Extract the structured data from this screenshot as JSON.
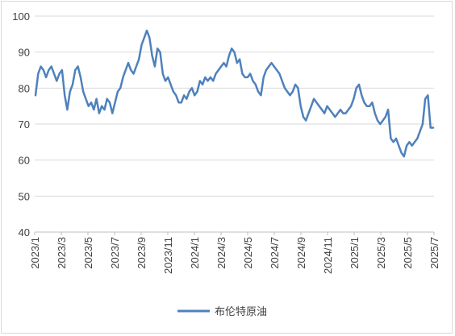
{
  "chart_data": {
    "type": "line",
    "title": "",
    "xlabel": "",
    "ylabel": "",
    "ylim": [
      40,
      100
    ],
    "yticks": [
      40,
      50,
      60,
      70,
      80,
      90,
      100
    ],
    "xticks": [
      "2023/1",
      "2023/3",
      "2023/5",
      "2023/7",
      "2023/9",
      "2023/11",
      "2024/1",
      "2024/3",
      "2024/5",
      "2024/7",
      "2024/9",
      "2024/11",
      "2025/1",
      "2025/3",
      "2025/5",
      "2025/7"
    ],
    "grid": "horizontal",
    "legend_position": "bottom",
    "colors": {
      "series": "#4f81bd",
      "grid": "#d9d9d9",
      "axis": "#bfbfbf"
    },
    "series": [
      {
        "name": "布伦特原油",
        "x": [
          "2023/1",
          "2023/1.1",
          "2023/1.3",
          "2023/1.6",
          "2023/1.9",
          "2023/2",
          "2023/2.2",
          "2023/2.4",
          "2023/2.6",
          "2023/2.8",
          "2023/3",
          "2023/3.2",
          "2023/3.4",
          "2023/3.6",
          "2023/3.8",
          "2023/4",
          "2023/4.2",
          "2023/4.4",
          "2023/4.6",
          "2023/4.8",
          "2023/5",
          "2023/5.2",
          "2023/5.4",
          "2023/5.6",
          "2023/5.8",
          "2023/6",
          "2023/6.2",
          "2023/6.4",
          "2023/6.6",
          "2023/6.8",
          "2023/7",
          "2023/7.2",
          "2023/7.4",
          "2023/7.6",
          "2023/7.8",
          "2023/8",
          "2023/8.2",
          "2023/8.4",
          "2023/8.6",
          "2023/8.8",
          "2023/9",
          "2023/9.2",
          "2023/9.4",
          "2023/9.6",
          "2023/9.8",
          "2023/10",
          "2023/10.2",
          "2023/10.4",
          "2023/10.6",
          "2023/10.8",
          "2023/11",
          "2023/11.2",
          "2023/11.4",
          "2023/11.6",
          "2023/11.8",
          "2023/12",
          "2023/12.2",
          "2023/12.4",
          "2023/12.6",
          "2023/12.8",
          "2024/1",
          "2024/1.2",
          "2024/1.4",
          "2024/1.6",
          "2024/1.8",
          "2024/2",
          "2024/2.2",
          "2024/2.4",
          "2024/2.6",
          "2024/2.8",
          "2024/3",
          "2024/3.2",
          "2024/3.4",
          "2024/3.6",
          "2024/3.8",
          "2024/4",
          "2024/4.2",
          "2024/4.4",
          "2024/4.6",
          "2024/4.8",
          "2024/5",
          "2024/5.2",
          "2024/5.4",
          "2024/5.6",
          "2024/5.8",
          "2024/6",
          "2024/6.2",
          "2024/6.4",
          "2024/6.6",
          "2024/6.8",
          "2024/7",
          "2024/7.2",
          "2024/7.4",
          "2024/7.6",
          "2024/7.8",
          "2024/8",
          "2024/8.2",
          "2024/8.4",
          "2024/8.6",
          "2024/8.8",
          "2024/9",
          "2024/9.2",
          "2024/9.4",
          "2024/9.6",
          "2024/9.8",
          "2024/10",
          "2024/10.2",
          "2024/10.4",
          "2024/10.6",
          "2024/10.8",
          "2024/11",
          "2024/11.2",
          "2024/11.4",
          "2024/11.6",
          "2024/11.8",
          "2024/12",
          "2024/12.2",
          "2024/12.4",
          "2024/12.6",
          "2024/12.8",
          "2025/1",
          "2025/1.2",
          "2025/1.4",
          "2025/1.6",
          "2025/1.8",
          "2025/2",
          "2025/2.2",
          "2025/2.4",
          "2025/2.6",
          "2025/2.8",
          "2025/3",
          "2025/3.2",
          "2025/3.4",
          "2025/3.6",
          "2025/3.8",
          "2025/4",
          "2025/4.2",
          "2025/4.4",
          "2025/4.6",
          "2025/4.8",
          "2025/5",
          "2025/5.2",
          "2025/5.4",
          "2025/5.6",
          "2025/5.8",
          "2025/6",
          "2025/6.2",
          "2025/6.4",
          "2025/6.6",
          "2025/6.8",
          "2025/7"
        ],
        "values": [
          78,
          84,
          86,
          85,
          83,
          85,
          86,
          84,
          82,
          84,
          85,
          78,
          74,
          79,
          81,
          85,
          86,
          83,
          79,
          77,
          75,
          76,
          74,
          77,
          73,
          75,
          74,
          77,
          76,
          73,
          76,
          79,
          80,
          83,
          85,
          87,
          85,
          84,
          86,
          88,
          92,
          94,
          96,
          94,
          89,
          86,
          91,
          90,
          84,
          82,
          83,
          81,
          79,
          78,
          76,
          76,
          78,
          77,
          79,
          80,
          78,
          79,
          82,
          81,
          83,
          82,
          83,
          82,
          84,
          85,
          86,
          87,
          86,
          89,
          91,
          90,
          87,
          88,
          84,
          83,
          83,
          84,
          82,
          81,
          79,
          78,
          83,
          85,
          86,
          87,
          86,
          85,
          84,
          82,
          80,
          79,
          78,
          79,
          81,
          80,
          75,
          72,
          71,
          73,
          75,
          77,
          76,
          75,
          74,
          73,
          75,
          74,
          73,
          72,
          73,
          74,
          73,
          73,
          74,
          75,
          77,
          80,
          81,
          78,
          76,
          75,
          75,
          76,
          73,
          71,
          70,
          71,
          72,
          74,
          66,
          65,
          66,
          64,
          62,
          61,
          64,
          65,
          64,
          65,
          66,
          68,
          70,
          77,
          78,
          69,
          69
        ]
      }
    ]
  }
}
